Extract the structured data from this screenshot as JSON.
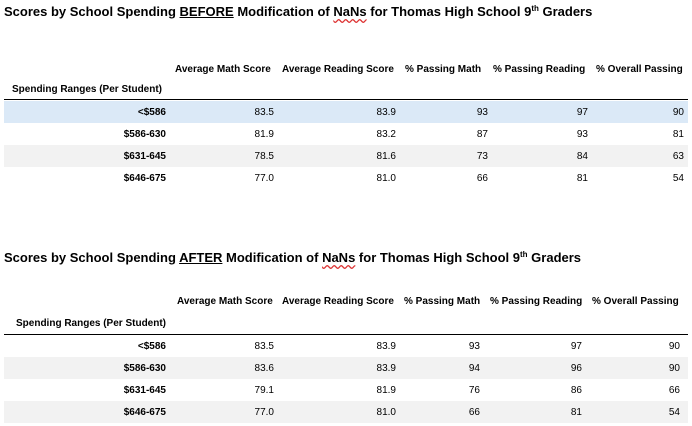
{
  "top": {
    "title_pre": "Scores by School Spending ",
    "title_em": "BEFORE",
    "title_mid": " Modification of ",
    "title_nans": "NaNs",
    "title_post": " for Thomas High School 9",
    "title_sup": "th",
    "title_end": " Graders",
    "columns": [
      "Average Math Score",
      "Average Reading Score",
      "% Passing Math",
      "% Passing Reading",
      "% Overall Passing"
    ],
    "index_label": "Spending Ranges (Per Student)",
    "rows": [
      {
        "label": "<$586",
        "math": "83.5",
        "reading": "83.9",
        "pmath": "93",
        "pread": "97",
        "overall": "90"
      },
      {
        "label": "$586-630",
        "math": "81.9",
        "reading": "83.2",
        "pmath": "87",
        "pread": "93",
        "overall": "81"
      },
      {
        "label": "$631-645",
        "math": "78.5",
        "reading": "81.6",
        "pmath": "73",
        "pread": "84",
        "overall": "63"
      },
      {
        "label": "$646-675",
        "math": "77.0",
        "reading": "81.0",
        "pmath": "66",
        "pread": "81",
        "overall": "54"
      }
    ]
  },
  "bottom": {
    "title_pre": "Scores by School Spending ",
    "title_em": "AFTER",
    "title_mid": " Modification of ",
    "title_nans": "NaNs",
    "title_post": " for Thomas High School 9",
    "title_sup": "th",
    "title_end": " Graders",
    "columns": [
      "Average Math Score",
      "Average Reading Score",
      "% Passing Math",
      "% Passing Reading",
      "% Overall Passing"
    ],
    "index_label": "Spending Ranges (Per Student)",
    "rows": [
      {
        "label": "<$586",
        "math": "83.5",
        "reading": "83.9",
        "pmath": "93",
        "pread": "97",
        "overall": "90"
      },
      {
        "label": "$586-630",
        "math": "83.6",
        "reading": "83.9",
        "pmath": "94",
        "pread": "96",
        "overall": "90"
      },
      {
        "label": "$631-645",
        "math": "79.1",
        "reading": "81.9",
        "pmath": "76",
        "pread": "86",
        "overall": "66"
      },
      {
        "label": "$646-675",
        "math": "77.0",
        "reading": "81.0",
        "pmath": "66",
        "pread": "81",
        "overall": "54"
      }
    ]
  }
}
